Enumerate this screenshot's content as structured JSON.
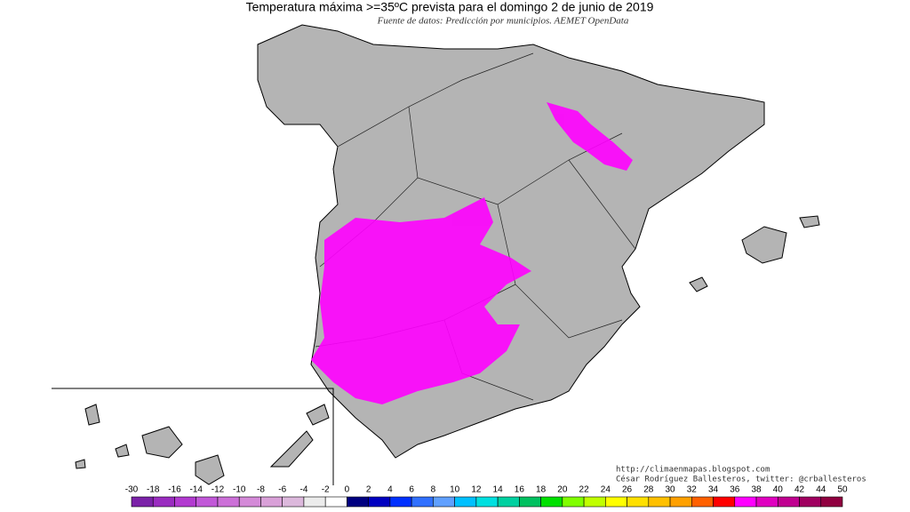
{
  "header": {
    "title": "Temperatura máxima >=35ºC prevista para el domingo 2 de junio de 2019",
    "subtitle": "Fuente de datos: Predicción por municipios. AEMET OpenData"
  },
  "credits": [
    "http://climaenmapas.blogspot.com",
    "César Rodríguez Ballesteros, twitter: @crballesteros"
  ],
  "legend": {
    "labels": [
      "-30",
      "-18",
      "-16",
      "-14",
      "-12",
      "-10",
      "-8",
      "-6",
      "-4",
      "-2",
      "0",
      "2",
      "4",
      "6",
      "8",
      "10",
      "12",
      "14",
      "16",
      "18",
      "20",
      "22",
      "24",
      "26",
      "28",
      "30",
      "32",
      "34",
      "36",
      "38",
      "40",
      "42",
      "44",
      "50"
    ],
    "colors": [
      "#7b22a8",
      "#9a2cc0",
      "#b23ad0",
      "#c158d8",
      "#cc70d8",
      "#d48ad8",
      "#d9a0d8",
      "#dcb8dc",
      "#ececec",
      "#ffffff",
      "#000080",
      "#0000c0",
      "#0030ff",
      "#3070ff",
      "#60a0ff",
      "#00c0ff",
      "#00e0e0",
      "#00d0a0",
      "#00c060",
      "#00e000",
      "#80ff00",
      "#c0ff00",
      "#ffff00",
      "#ffe000",
      "#ffc000",
      "#ffa000",
      "#ff6000",
      "#ff0000",
      "#ff00ff",
      "#e000c0",
      "#c00090",
      "#a00060",
      "#900040"
    ]
  }
}
